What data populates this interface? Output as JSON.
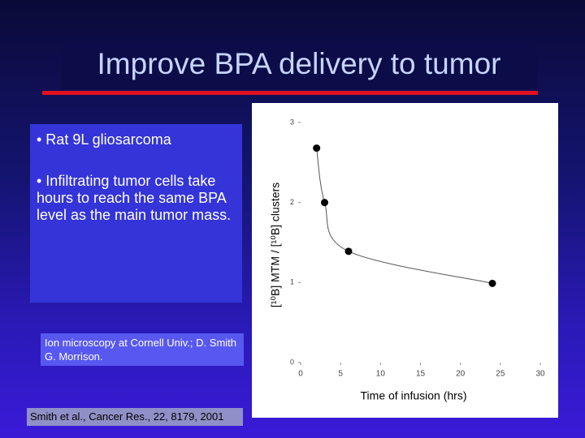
{
  "title": "Improve BPA delivery to tumor",
  "bullets": [
    "• Rat 9L gliosarcoma",
    "• Infiltrating tumor cells take hours to reach the same BPA level as the main tumor mass."
  ],
  "caption": "Ion microscopy at Cornell Univ.; D. Smith G. Morrison.",
  "reference": "Smith et al., Cancer Res., 22, 8179, 2001",
  "chart_data": {
    "type": "scatter",
    "x_label": "Time of infusion (hrs)",
    "y_label": "[¹⁰B] MTM / [¹⁰B] clusters",
    "x": [
      2,
      3,
      6,
      24
    ],
    "values": [
      2.68,
      2.0,
      1.39,
      0.99
    ],
    "color": "#000000",
    "xlim": [
      0,
      30
    ],
    "xticks": [
      0,
      5,
      10,
      15,
      20,
      25,
      30
    ],
    "ylim": [
      0,
      3
    ],
    "yticks": [
      0,
      1,
      2,
      3
    ]
  }
}
